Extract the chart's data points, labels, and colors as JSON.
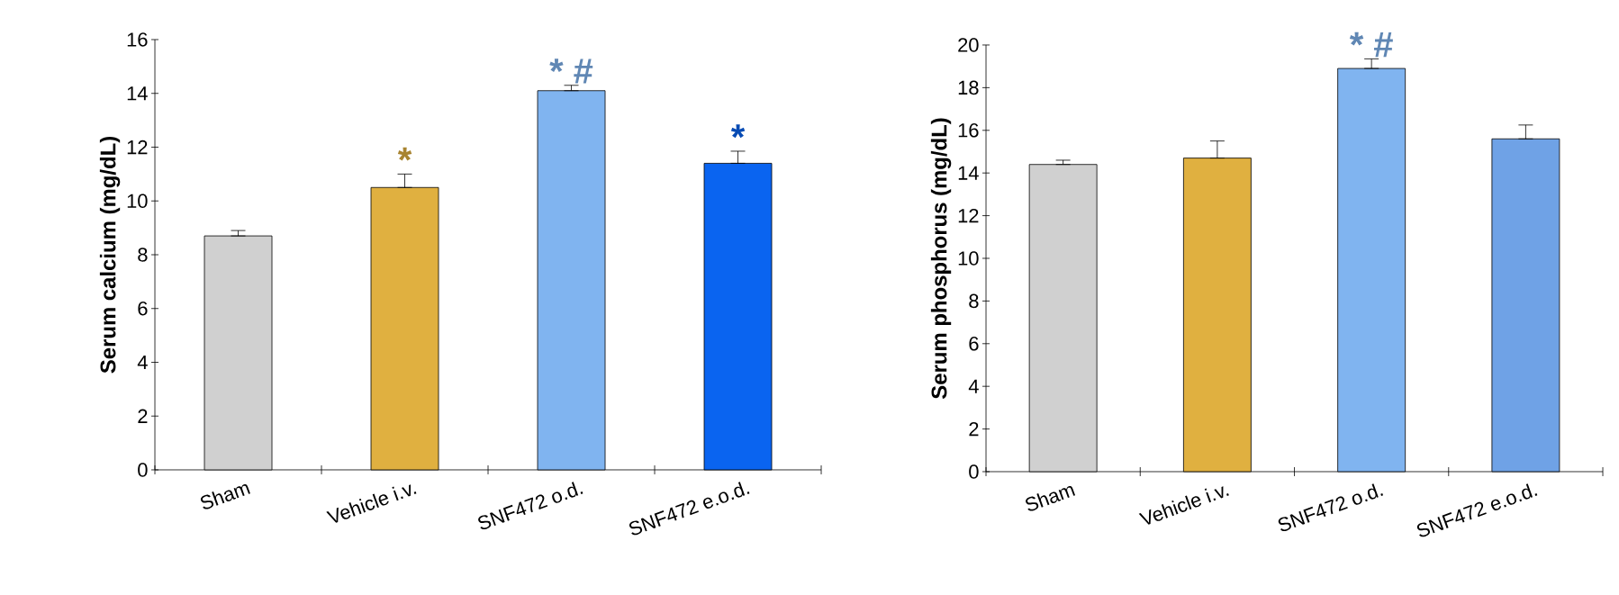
{
  "chart_data": [
    {
      "type": "bar",
      "ylabel": "Serum calcium (mg/dL)",
      "categories": [
        "Sham",
        "Vehicle i.v.",
        "SNF472 o.d.",
        "SNF472 e.o.d."
      ],
      "values": [
        8.7,
        10.5,
        14.1,
        11.4
      ],
      "colors": [
        "#d0d0d0",
        "#e0b040",
        "#80b4f0",
        "#0a64f0"
      ],
      "errors": [
        [
          8.7,
          8.9
        ],
        [
          10.5,
          11.0
        ],
        [
          14.1,
          14.3
        ],
        [
          11.4,
          11.85
        ]
      ],
      "ylim": [
        0,
        16
      ],
      "yticks": [
        0,
        2,
        4,
        6,
        8,
        10,
        12,
        14,
        16
      ],
      "grid": false,
      "annotations": [
        {
          "text": "*",
          "x": "Vehicle i.v.",
          "y": 11.0
        },
        {
          "text": "* #",
          "x": "SNF472 o.d.",
          "y": 14.3
        },
        {
          "text": "*",
          "x": "SNF472 e.o.d.",
          "y": 11.85
        }
      ]
    },
    {
      "type": "bar",
      "ylabel": "Serum phosphorus (mg/dL)",
      "categories": [
        "Sham",
        "Vehicle i.v.",
        "SNF472 o.d.",
        "SNF472 e.o.d."
      ],
      "values": [
        14.4,
        14.7,
        18.9,
        15.6
      ],
      "colors": [
        "#d0d0d0",
        "#e0b040",
        "#80b4f0",
        "#6fa2e6"
      ],
      "errors": [
        [
          14.4,
          14.6
        ],
        [
          14.7,
          15.5
        ],
        [
          18.9,
          19.35
        ],
        [
          15.6,
          16.25
        ]
      ],
      "ylim": [
        0,
        20
      ],
      "yticks": [
        0,
        2,
        4,
        6,
        8,
        10,
        12,
        14,
        16,
        18,
        20
      ],
      "grid": false,
      "annotations": [
        {
          "text": "* #",
          "x": "SNF472 o.d.",
          "y": 19.35
        }
      ]
    }
  ]
}
